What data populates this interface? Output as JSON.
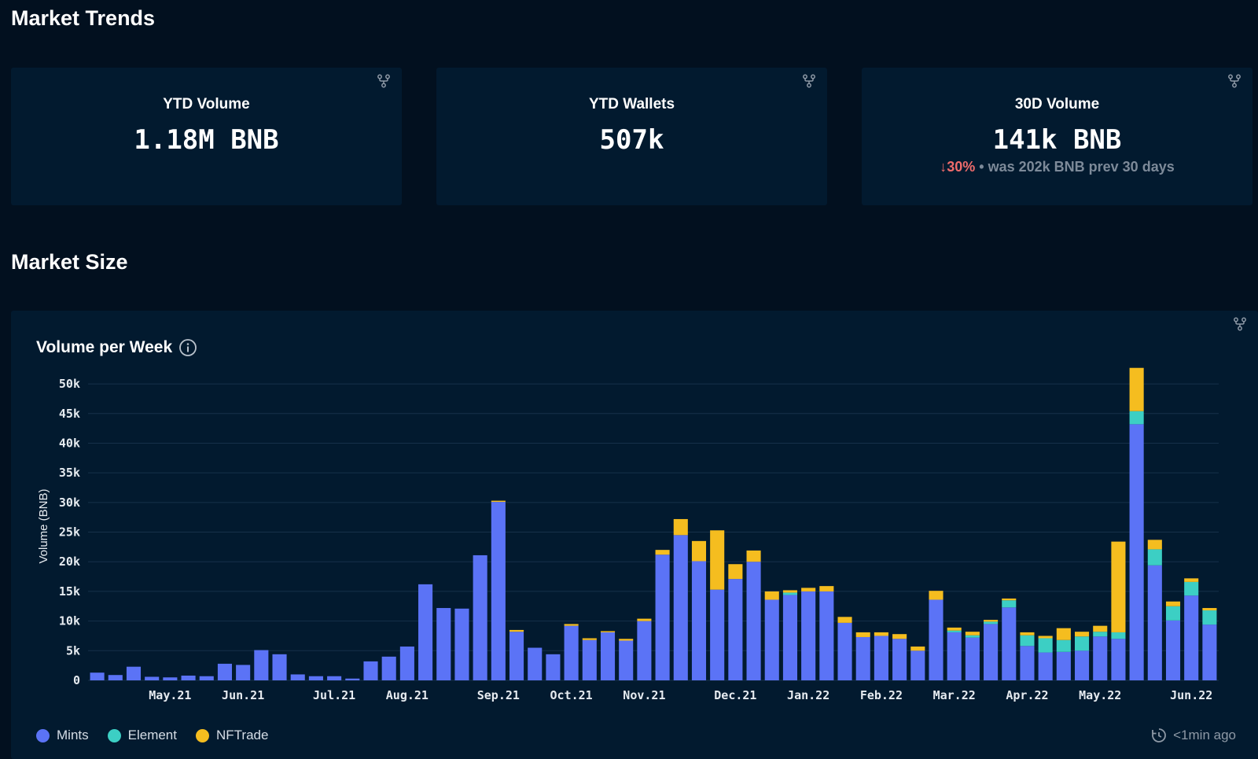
{
  "sections": {
    "trends_title": "Market Trends",
    "size_title": "Market Size"
  },
  "cards": [
    {
      "label": "YTD Volume",
      "value": "1.18M BNB"
    },
    {
      "label": "YTD Wallets",
      "value": "507k"
    },
    {
      "label": "30D Volume",
      "value": "141k BNB",
      "delta_pct": "30%",
      "delta_text": " • was 202k BNB prev 30 days"
    }
  ],
  "chart": {
    "title": "Volume per Week",
    "refresh_text": "<1min ago"
  },
  "colors": {
    "mints": "#5b73f6",
    "element": "#3ccfc4",
    "nftrade": "#f5bd1f",
    "grid": "#16304a",
    "axis_text": "#e6ebf0"
  },
  "chart_data": {
    "type": "bar",
    "stacked": true,
    "title": "Volume per Week",
    "xlabel": "",
    "ylabel": "Volume (BNB)",
    "ylim": [
      0,
      52000
    ],
    "yticks": [
      0,
      5000,
      10000,
      15000,
      20000,
      25000,
      30000,
      35000,
      40000,
      45000,
      50000
    ],
    "ytick_labels": [
      "0",
      "5k",
      "10k",
      "15k",
      "20k",
      "25k",
      "30k",
      "35k",
      "40k",
      "45k",
      "50k"
    ],
    "x_tick_labels": [
      {
        "label": "May.21",
        "index": 4
      },
      {
        "label": "Jun.21",
        "index": 8
      },
      {
        "label": "Jul.21",
        "index": 13
      },
      {
        "label": "Aug.21",
        "index": 17
      },
      {
        "label": "Sep.21",
        "index": 22
      },
      {
        "label": "Oct.21",
        "index": 26
      },
      {
        "label": "Nov.21",
        "index": 30
      },
      {
        "label": "Dec.21",
        "index": 35
      },
      {
        "label": "Jan.22",
        "index": 39
      },
      {
        "label": "Feb.22",
        "index": 43
      },
      {
        "label": "Mar.22",
        "index": 47
      },
      {
        "label": "Apr.22",
        "index": 51
      },
      {
        "label": "May.22",
        "index": 55
      },
      {
        "label": "Jun.22",
        "index": 60
      }
    ],
    "legend": "bottom-left",
    "grid": true,
    "series": [
      {
        "name": "Mints",
        "color": "#5b73f6",
        "values": [
          1300,
          900,
          2300,
          600,
          500,
          800,
          700,
          2800,
          2600,
          5100,
          4400,
          1000,
          700,
          700,
          300,
          3200,
          4000,
          5700,
          16200,
          12200,
          12100,
          21100,
          30100,
          8200,
          5500,
          4400,
          9200,
          6800,
          8100,
          6700,
          10000,
          21200,
          24500,
          20100,
          15300,
          17100,
          20000,
          13600,
          14400,
          15000,
          15000,
          9700,
          7300,
          7500,
          7000,
          5000,
          13600,
          8100,
          7200,
          9500,
          12300,
          5800,
          4700,
          4800,
          5000,
          7400,
          7000,
          43200,
          19400,
          10100,
          14300,
          9400
        ]
      },
      {
        "name": "Element",
        "color": "#3ccfc4",
        "values": [
          0,
          0,
          0,
          0,
          0,
          0,
          0,
          0,
          0,
          0,
          0,
          0,
          0,
          0,
          0,
          0,
          0,
          0,
          0,
          0,
          0,
          0,
          0,
          0,
          0,
          0,
          0,
          0,
          0,
          0,
          0,
          0,
          0,
          0,
          0,
          0,
          0,
          0,
          400,
          0,
          0,
          0,
          0,
          0,
          0,
          0,
          0,
          300,
          400,
          400,
          1200,
          1800,
          2400,
          2000,
          2400,
          800,
          1100,
          2200,
          2700,
          2400,
          2300,
          2400
        ]
      },
      {
        "name": "NFTrade",
        "color": "#f5bd1f",
        "values": [
          0,
          0,
          0,
          0,
          0,
          0,
          0,
          0,
          0,
          0,
          0,
          0,
          0,
          0,
          0,
          0,
          0,
          0,
          0,
          0,
          0,
          0,
          200,
          300,
          0,
          0,
          300,
          300,
          200,
          300,
          400,
          800,
          2700,
          3400,
          10000,
          2500,
          1900,
          1400,
          400,
          600,
          900,
          1000,
          800,
          600,
          800,
          700,
          1500,
          500,
          600,
          300,
          300,
          500,
          400,
          2000,
          800,
          1000,
          15300,
          7300,
          1600,
          800,
          600,
          400
        ]
      }
    ]
  }
}
